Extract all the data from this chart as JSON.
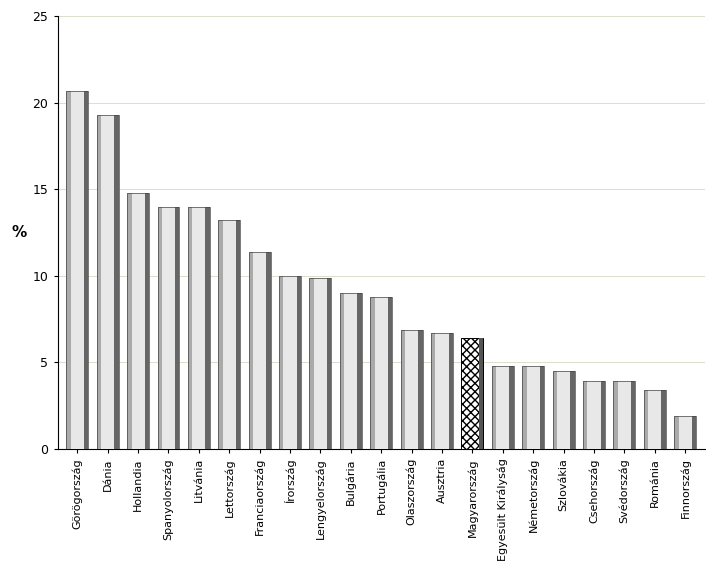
{
  "categories": [
    "Görögország",
    "Dánia",
    "Hollandia",
    "Spanyolország",
    "Litvánia",
    "Lettország",
    "Franciaország",
    "Írország",
    "Lengyelország",
    "Bulgária",
    "Portugália",
    "Olaszország",
    "Ausztria",
    "Magyarország",
    "Egyesült Királyság",
    "Németország",
    "Szlovákia",
    "Csehország",
    "Svédország",
    "Románia",
    "Finnország"
  ],
  "values": [
    20.7,
    19.3,
    14.8,
    14.0,
    14.0,
    13.2,
    11.4,
    10.0,
    9.9,
    9.0,
    8.8,
    6.9,
    6.7,
    6.4,
    4.8,
    4.8,
    4.5,
    3.9,
    3.9,
    3.4,
    1.9
  ],
  "special_index": 13,
  "ylabel": "%",
  "ylim": [
    0,
    25
  ],
  "yticks": [
    0,
    5,
    10,
    15,
    20,
    25
  ],
  "col_left": "#aaaaaa",
  "col_center": "#e8e8e8",
  "col_right": "#666666",
  "col_edge": "#444444",
  "background_color": "#ffffff",
  "grid_color": "#ddddcc"
}
